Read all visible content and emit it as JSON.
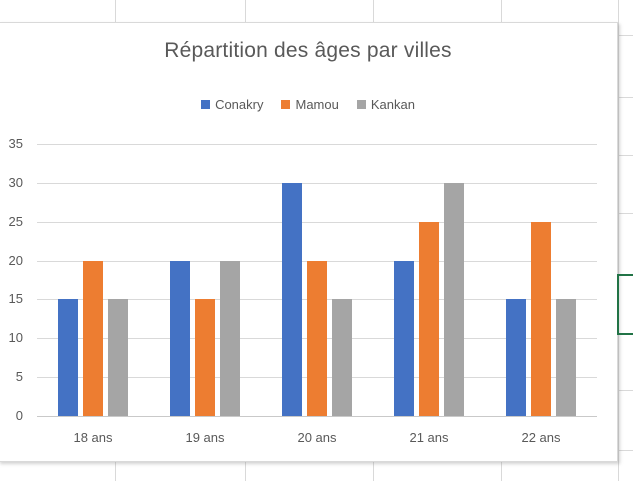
{
  "chart_data": {
    "type": "bar",
    "title": "Répartition des âges par villes",
    "categories": [
      "18 ans",
      "19 ans",
      "20 ans",
      "21 ans",
      "22 ans"
    ],
    "series": [
      {
        "name": "Conakry",
        "color": "#4472C4",
        "values": [
          15,
          20,
          30,
          20,
          15
        ]
      },
      {
        "name": "Mamou",
        "color": "#ED7D31",
        "values": [
          20,
          15,
          20,
          25,
          25
        ]
      },
      {
        "name": "Kankan",
        "color": "#A5A5A5",
        "values": [
          15,
          20,
          15,
          30,
          15
        ]
      }
    ],
    "xlabel": "",
    "ylabel": "",
    "ylim": [
      0,
      35
    ],
    "yticks": [
      0,
      5,
      10,
      15,
      20,
      25,
      30,
      35
    ],
    "grid": true,
    "legend_position": "top",
    "gridline_color": "#D9D9D9",
    "text_color": "#595959"
  },
  "worksheet": {
    "selection_color": "#217346",
    "gridline_color": "#D9D9D9"
  }
}
